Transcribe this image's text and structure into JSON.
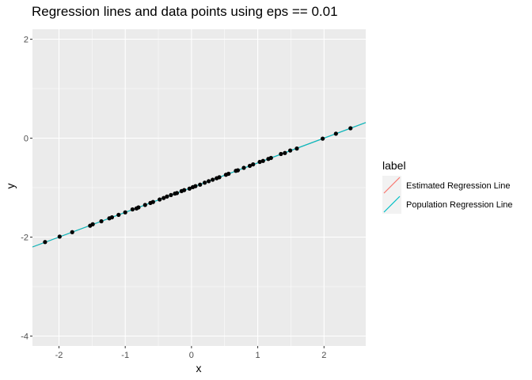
{
  "chart_data": {
    "type": "scatter",
    "title": "Regression lines and data points using eps ==  0.01",
    "xlabel": "x",
    "ylabel": "y",
    "xlim": [
      -2.4,
      2.63
    ],
    "ylim": [
      -4.2,
      2.2
    ],
    "x_ticks": [
      -2,
      -1,
      0,
      1,
      2
    ],
    "y_ticks": [
      -4,
      -2,
      0,
      2
    ],
    "x_tick_labels": [
      "-2",
      "-1",
      "0",
      "1",
      "2"
    ],
    "y_tick_labels": [
      "-4",
      "-2",
      "0",
      "2"
    ],
    "grid": true,
    "legend_position": "right",
    "legend_title": "label",
    "points": {
      "x": [
        -2.21,
        -1.99,
        -1.8,
        -1.53,
        -1.49,
        -1.36,
        -1.24,
        -1.2,
        -1.1,
        -1.0,
        -0.89,
        -0.83,
        -0.8,
        -0.7,
        -0.62,
        -0.58,
        -0.48,
        -0.42,
        -0.37,
        -0.31,
        -0.25,
        -0.22,
        -0.15,
        -0.11,
        -0.03,
        0.02,
        0.06,
        0.13,
        0.2,
        0.26,
        0.32,
        0.38,
        0.42,
        0.52,
        0.56,
        0.67,
        0.7,
        0.79,
        0.88,
        0.93,
        1.03,
        1.08,
        1.16,
        1.2,
        1.35,
        1.41,
        1.49,
        1.59,
        1.98,
        2.18,
        2.4
      ],
      "y": [
        -2.1,
        -1.99,
        -1.9,
        -1.77,
        -1.74,
        -1.68,
        -1.62,
        -1.6,
        -1.55,
        -1.5,
        -1.44,
        -1.42,
        -1.4,
        -1.35,
        -1.31,
        -1.29,
        -1.24,
        -1.21,
        -1.18,
        -1.15,
        -1.12,
        -1.11,
        -1.07,
        -1.05,
        -1.02,
        -0.99,
        -0.97,
        -0.94,
        -0.9,
        -0.87,
        -0.84,
        -0.81,
        -0.79,
        -0.74,
        -0.72,
        -0.66,
        -0.65,
        -0.6,
        -0.56,
        -0.53,
        -0.48,
        -0.46,
        -0.42,
        -0.4,
        -0.32,
        -0.3,
        -0.25,
        -0.21,
        -0.01,
        0.09,
        0.2
      ]
    },
    "series": [
      {
        "name": "Estimated Regression Line",
        "type": "line",
        "intercept": -1.0,
        "slope": 0.5,
        "color": "#F8766D"
      },
      {
        "name": "Population Regression Line",
        "type": "line",
        "intercept": -1.0,
        "slope": 0.5,
        "color": "#00BFC4"
      }
    ],
    "colors": {
      "panel_background": "#EBEBEB",
      "grid_major": "#FFFFFF",
      "points": "#000000"
    }
  }
}
